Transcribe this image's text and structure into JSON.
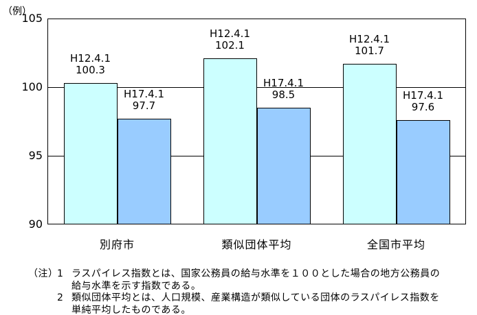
{
  "chart_data": {
    "type": "bar",
    "title": "",
    "unit_label": "（例）",
    "categories": [
      "別府市",
      "類似団体平均",
      "全国市平均"
    ],
    "series": [
      {
        "name": "H12.4.1",
        "color": "#ccffff",
        "values": [
          100.3,
          102.1,
          101.7
        ]
      },
      {
        "name": "H17.4.1",
        "color": "#99ccff",
        "values": [
          97.7,
          98.5,
          97.6
        ]
      }
    ],
    "ylim": [
      90,
      105
    ],
    "yticks": [
      90,
      95,
      100,
      105
    ],
    "grid": true,
    "legend_position": "none",
    "bar_label_format": "series name above value, above each bar",
    "axis_color": "#000000",
    "background_color": "#ffffff"
  },
  "notes": {
    "prefix": "（注）",
    "items": [
      {
        "no": "1",
        "lines": [
          "ラスパイレス指数とは、国家公務員の給与水準を１００とした場合の地方公務員の",
          "給与水準を示す指数である。"
        ]
      },
      {
        "no": "2",
        "lines": [
          "類似団体平均とは、人口規模、産業構造が類似している団体のラスパイレス指数を",
          "単純平均したものである。"
        ]
      }
    ]
  }
}
